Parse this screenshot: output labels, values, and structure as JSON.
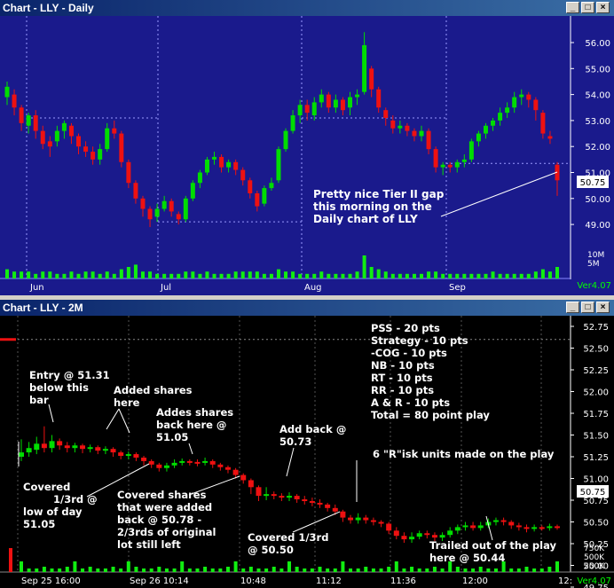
{
  "top_window": {
    "title": "Chart - LLY - Daily",
    "price_ticks": [
      "56.00",
      "55.00",
      "54.00",
      "53.00",
      "52.00",
      "51.00",
      "50.00",
      "49.00"
    ],
    "volume_ticks": [
      "10M",
      "5M"
    ],
    "price_badge": "50.75",
    "version": "Ver4.07",
    "month_labels": [
      "Jun",
      "Jul",
      "Aug",
      "Sep"
    ],
    "annotation": [
      "Pretty nice Tier II gap",
      "this morning on the",
      "Daily chart of LLY"
    ]
  },
  "bottom_window": {
    "title": "Chart - LLY - 2M",
    "price_ticks": [
      "52.75",
      "52.50",
      "52.25",
      "52.00",
      "51.75",
      "51.50",
      "51.25",
      "51.00",
      "50.75",
      "50.50",
      "50.25",
      "50.00",
      "49.75"
    ],
    "volume_ticks": [
      "750K",
      "500K",
      "250K"
    ],
    "price_badge": "50.75",
    "version": "Ver4.07",
    "time_labels": [
      "Sep 25 16:00",
      "Sep 26 10:14",
      "10:48",
      "11:12",
      "11:36",
      "12:00",
      "12:"
    ],
    "score_lines": [
      "PSS - 20 pts",
      "Strategy - 10 pts",
      "-COG - 10 pts",
      "NB - 10 pts",
      "RT - 10 pts",
      "RR - 10 pts",
      "A & R - 10 pts",
      "Total = 80 point play"
    ],
    "annotations": {
      "entry": [
        "Entry @ 51.31",
        "below this",
        "bar"
      ],
      "added": [
        "Added shares",
        "here"
      ],
      "addes_back": [
        "Addes shares",
        "back here @",
        "51.05"
      ],
      "add_back": [
        "Add back @",
        "50.73"
      ],
      "risk_units": "6 \"R\"isk units made on the play",
      "covered_third": [
        "Covered",
        "1/3rd @",
        "low of day",
        "51.05"
      ],
      "covered_shares": [
        "Covered shares",
        "that were added",
        "back @ 50.78 -",
        "2/3rds of original",
        "lot still left"
      ],
      "covered_third2": [
        "Covered 1/3rd",
        "@ 50.50"
      ],
      "trailed": [
        "Trailed out of the play",
        "here  @ 50.44"
      ]
    }
  },
  "colors": {
    "up": "#00dd00",
    "down": "#ee1111",
    "top_bg": "#1a1a8c",
    "bottom_bg": "#000000",
    "volume": "#11ee11"
  }
}
